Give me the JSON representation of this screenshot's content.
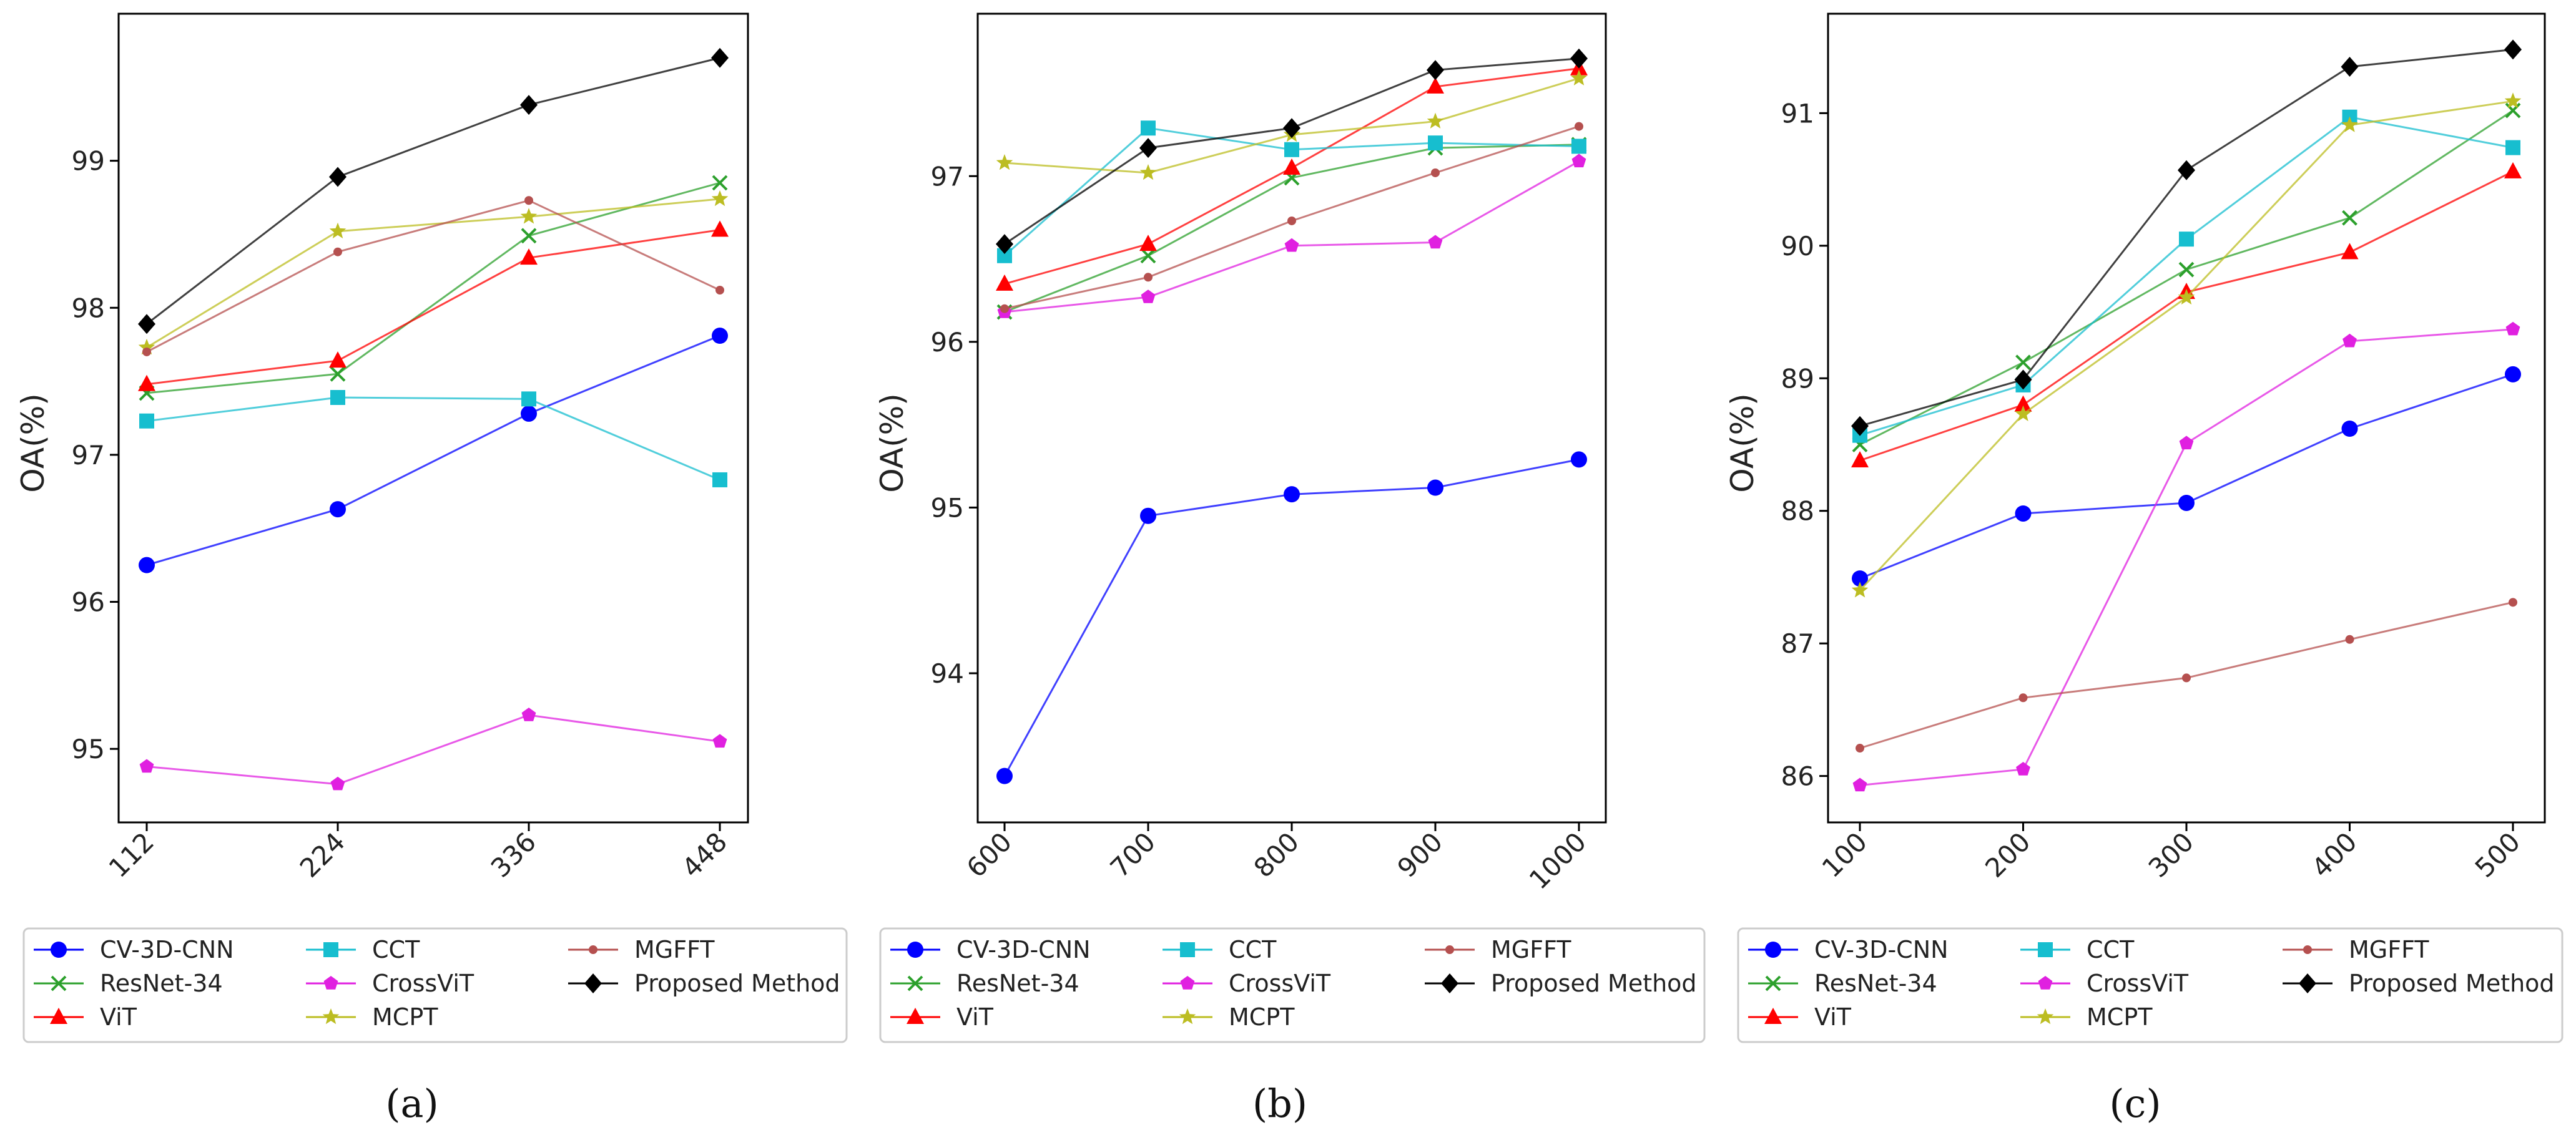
{
  "chart_data": [
    {
      "type": "line",
      "caption": "(a)",
      "ylabel": "OA(%)",
      "categories": [
        "112",
        "224",
        "336",
        "448"
      ],
      "ylim": [
        94.5,
        100.0
      ],
      "yticks": [
        "95",
        "96",
        "97",
        "98",
        "99"
      ],
      "legend_location": "below",
      "series": [
        {
          "name": "CV-3D-CNN",
          "color": "#0000ff",
          "marker": "circle",
          "values": [
            96.25,
            96.63,
            97.28,
            97.81
          ]
        },
        {
          "name": "ResNet-34",
          "color": "#2ca02c",
          "marker": "x",
          "values": [
            97.42,
            97.55,
            98.49,
            98.85
          ]
        },
        {
          "name": "ViT",
          "color": "#ff0000",
          "marker": "triangle",
          "values": [
            97.48,
            97.64,
            98.34,
            98.53
          ]
        },
        {
          "name": "CCT",
          "color": "#17becf",
          "marker": "square",
          "values": [
            97.23,
            97.39,
            97.38,
            96.83
          ]
        },
        {
          "name": "CrossViT",
          "color": "#e020e0",
          "marker": "pentagon",
          "values": [
            94.88,
            94.76,
            95.23,
            95.05
          ]
        },
        {
          "name": "MCPT",
          "color": "#bcbd22",
          "marker": "star",
          "values": [
            97.73,
            98.52,
            98.62,
            98.74
          ]
        },
        {
          "name": "MGFFT",
          "color": "#b5504f",
          "marker": "dot",
          "values": [
            97.7,
            98.38,
            98.73,
            98.12
          ]
        },
        {
          "name": "Proposed Method",
          "color": "#000000",
          "marker": "diamond",
          "values": [
            97.89,
            98.89,
            99.38,
            99.7
          ]
        }
      ]
    },
    {
      "type": "line",
      "caption": "(b)",
      "ylabel": "OA(%)",
      "categories": [
        "600",
        "700",
        "800",
        "900",
        "1000"
      ],
      "ylim": [
        93.1,
        97.98
      ],
      "yticks": [
        "94",
        "95",
        "96",
        "97"
      ],
      "legend_location": "below",
      "series": [
        {
          "name": "CV-3D-CNN",
          "color": "#0000ff",
          "marker": "circle",
          "values": [
            93.38,
            94.95,
            95.08,
            95.12,
            95.29
          ]
        },
        {
          "name": "ResNet-34",
          "color": "#2ca02c",
          "marker": "x",
          "values": [
            96.18,
            96.52,
            96.99,
            97.17,
            97.19
          ]
        },
        {
          "name": "ViT",
          "color": "#ff0000",
          "marker": "triangle",
          "values": [
            96.35,
            96.59,
            97.05,
            97.54,
            97.65
          ]
        },
        {
          "name": "CCT",
          "color": "#17becf",
          "marker": "square",
          "values": [
            96.52,
            97.29,
            97.16,
            97.2,
            97.18
          ]
        },
        {
          "name": "CrossViT",
          "color": "#e020e0",
          "marker": "pentagon",
          "values": [
            96.18,
            96.27,
            96.58,
            96.6,
            97.09
          ]
        },
        {
          "name": "MCPT",
          "color": "#bcbd22",
          "marker": "star",
          "values": [
            97.08,
            97.02,
            97.25,
            97.33,
            97.59
          ]
        },
        {
          "name": "MGFFT",
          "color": "#b5504f",
          "marker": "dot",
          "values": [
            96.2,
            96.39,
            96.73,
            97.02,
            97.3
          ]
        },
        {
          "name": "Proposed Method",
          "color": "#000000",
          "marker": "diamond",
          "values": [
            96.59,
            97.17,
            97.29,
            97.64,
            97.71
          ]
        }
      ]
    },
    {
      "type": "line",
      "caption": "(c)",
      "ylabel": "OA(%)",
      "categories": [
        "100",
        "200",
        "300",
        "400",
        "500"
      ],
      "ylim": [
        85.65,
        91.75
      ],
      "yticks": [
        "86",
        "87",
        "88",
        "89",
        "90",
        "91"
      ],
      "legend_location": "below",
      "series": [
        {
          "name": "CV-3D-CNN",
          "color": "#0000ff",
          "marker": "circle",
          "values": [
            87.49,
            87.98,
            88.06,
            88.62,
            89.03
          ]
        },
        {
          "name": "ResNet-34",
          "color": "#2ca02c",
          "marker": "x",
          "values": [
            88.5,
            89.12,
            89.82,
            90.21,
            91.02
          ]
        },
        {
          "name": "ViT",
          "color": "#ff0000",
          "marker": "triangle",
          "values": [
            88.38,
            88.8,
            89.65,
            89.95,
            90.56
          ]
        },
        {
          "name": "CCT",
          "color": "#17becf",
          "marker": "square",
          "values": [
            88.57,
            88.95,
            90.05,
            90.97,
            90.74
          ]
        },
        {
          "name": "CrossViT",
          "color": "#e020e0",
          "marker": "pentagon",
          "values": [
            85.93,
            86.05,
            88.51,
            89.28,
            89.37
          ]
        },
        {
          "name": "MCPT",
          "color": "#bcbd22",
          "marker": "star",
          "values": [
            87.4,
            88.73,
            89.61,
            90.91,
            91.09
          ]
        },
        {
          "name": "MGFFT",
          "color": "#b5504f",
          "marker": "dot",
          "values": [
            86.21,
            86.59,
            86.74,
            87.03,
            87.31
          ]
        },
        {
          "name": "Proposed Method",
          "color": "#000000",
          "marker": "diamond",
          "values": [
            88.64,
            88.99,
            90.57,
            91.35,
            91.48
          ]
        }
      ]
    }
  ]
}
